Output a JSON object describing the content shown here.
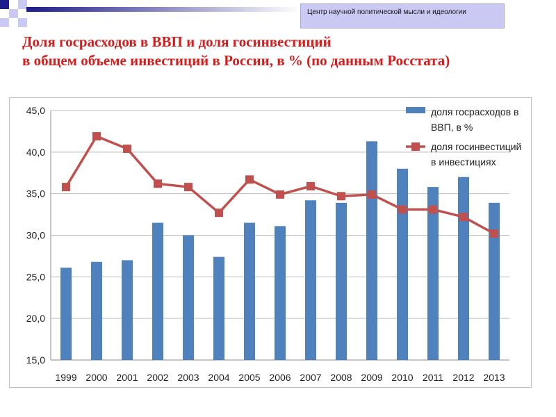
{
  "header": {
    "organization": "Центр научной политической мысли и идеологии"
  },
  "title": {
    "line1": "Доля госрасходов в ВВП и доля госинвестиций",
    "line2": "в общем объеме инвестиций в России, в % (по данным Росстата)"
  },
  "colors": {
    "bar": "#4f81bd",
    "line": "#c0504d",
    "title": "#d81b1b",
    "accent_dark": "#1c1c8c",
    "accent_light": "#c9c9f3"
  },
  "chart_data": {
    "type": "bar",
    "categories": [
      "1999",
      "2000",
      "2001",
      "2002",
      "2003",
      "2004",
      "2005",
      "2006",
      "2007",
      "2008",
      "2009",
      "2010",
      "2011",
      "2012",
      "2013"
    ],
    "series": [
      {
        "name": "доля госрасходов в ВВП, в %",
        "type": "bar",
        "values": [
          26.1,
          26.8,
          27.0,
          31.5,
          30.0,
          27.4,
          31.5,
          31.1,
          34.2,
          33.9,
          41.3,
          38.0,
          35.8,
          37.0,
          33.9
        ]
      },
      {
        "name": "доля госинвестиций в инвестициях",
        "type": "line",
        "values": [
          35.8,
          41.9,
          40.4,
          36.2,
          35.8,
          32.7,
          36.7,
          34.9,
          35.9,
          34.7,
          34.9,
          33.1,
          33.1,
          32.2,
          30.2
        ]
      }
    ],
    "legend": [
      {
        "line1": "доля госрасходов в",
        "line2": "ВВП, в %"
      },
      {
        "line1": "доля госинвестиций",
        "line2": "в инвестициях"
      }
    ],
    "ylim": [
      15.0,
      45.0
    ],
    "yticks": [
      "15,0",
      "20,0",
      "25,0",
      "30,0",
      "35,0",
      "40,0",
      "45,0"
    ],
    "grid": true,
    "legend_position": "top-right"
  }
}
